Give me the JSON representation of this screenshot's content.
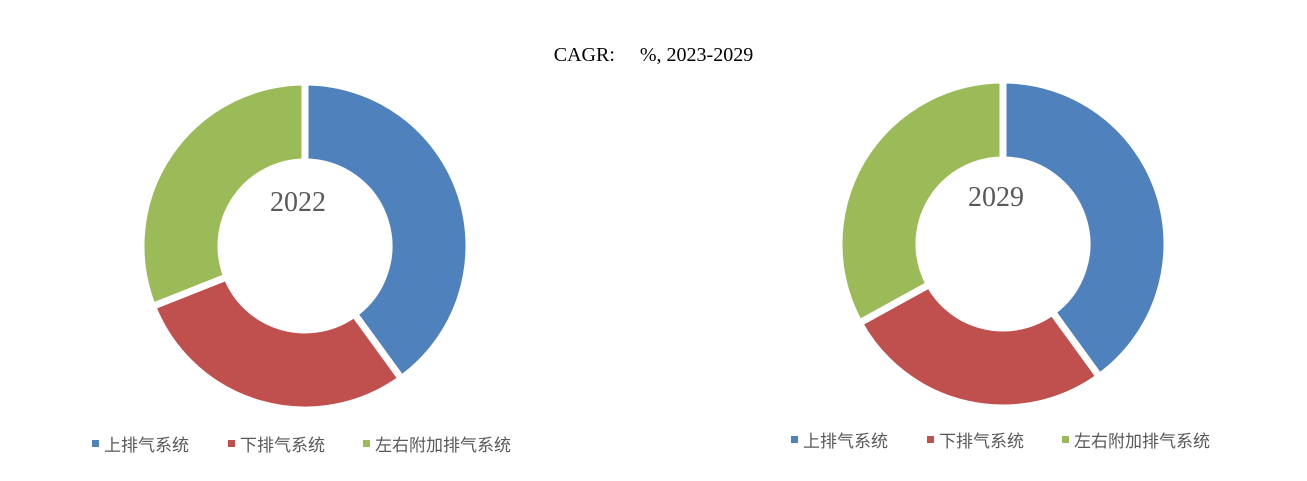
{
  "subtitle": "CAGR:     %, 2023-2029",
  "colors": {
    "top_exhaust": "#4F81BD",
    "bottom_exhaust": "#C0504D",
    "side_exhaust": "#9BBB59",
    "center_text": "#595959",
    "legend_text": "#595959"
  },
  "chart_data": [
    {
      "type": "pie",
      "variant": "donut",
      "center_label": "2022",
      "categories": [
        "上排气系统",
        "下排气系统",
        "左右附加排气系统"
      ],
      "values": [
        40,
        29,
        31
      ],
      "legend_position": "bottom"
    },
    {
      "type": "pie",
      "variant": "donut",
      "center_label": "2029",
      "categories": [
        "上排气系统",
        "下排气系统",
        "左右附加排气系统"
      ],
      "values": [
        40,
        27,
        33
      ],
      "legend_position": "bottom"
    }
  ]
}
